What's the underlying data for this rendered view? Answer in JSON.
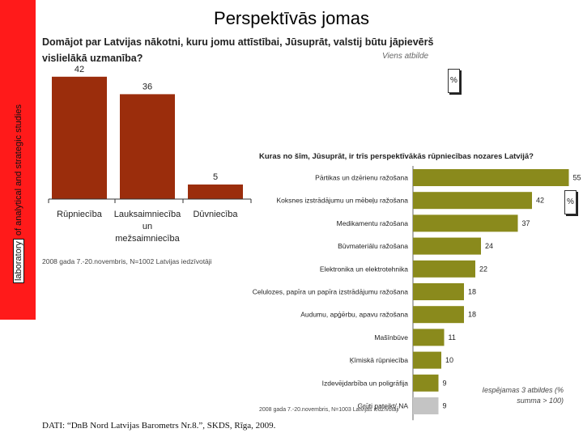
{
  "slide": {
    "title": "Perspektīvās jomas",
    "side_label_boxed": "laboratory",
    "side_label_rest": "of analytical and strategic studies",
    "percent_symbol": "%",
    "data_source": "DATI: “DnB Nord Latvijas Barometrs Nr.8.”, SKDS, Rīga, 2009."
  },
  "chart1": {
    "question": "Domājot par Latvijas nākotni, kuru jomu attīstībai, Jūsuprāt, valstij būtu jāpievērš vislielākā uzmanība?",
    "note": "Viens atbilde",
    "source": "2008 gada 7.-20.novembris, N=1002 Latvijas iedzīvotāji"
  },
  "chart2": {
    "question": "Kuras no šīm, Jūsuprāt, ir trīs perspektīvākās rūpniecības nozares Latvijā?",
    "note": "Iespējamas 3 atbildes (% summa > 100)",
    "source": "2008 gada 7.-20.novembris, N=1003 Latvijas iedzīvotāji"
  },
  "chart_data": [
    {
      "type": "bar",
      "categories": [
        "Rūpniecība",
        "Lauksaimniecība un mežsaimniecība",
        "Dūvniecība"
      ],
      "values": [
        42,
        36,
        5
      ],
      "color": "#9b2d0c",
      "data_labels": true
    },
    {
      "type": "bar",
      "orientation": "horizontal",
      "categories": [
        "Pārtikas un dzērienu ražošana",
        "Koksnes izstrādājumu un mēbeļu ražošana",
        "Medikamentu ražošana",
        "Būvmateriālu ražošana",
        "Elektronika un elektrotehnika",
        "Celulozes, papīra un papīra izstrādājumu ražošana",
        "Audumu, apģērbu, apavu ražošana",
        "Mašīnbūve",
        "Ķīmiskā rūpniecība",
        "Izdevējdarbība un poligrāfija",
        "Grūti pateikt/ NA"
      ],
      "values": [
        55,
        42,
        37,
        24,
        22,
        18,
        18,
        11,
        10,
        9,
        9
      ],
      "colors": [
        "#8a8a1c",
        "#8a8a1c",
        "#8a8a1c",
        "#8a8a1c",
        "#8a8a1c",
        "#8a8a1c",
        "#8a8a1c",
        "#8a8a1c",
        "#8a8a1c",
        "#8a8a1c",
        "#c4c4c4"
      ],
      "data_labels": true
    }
  ]
}
